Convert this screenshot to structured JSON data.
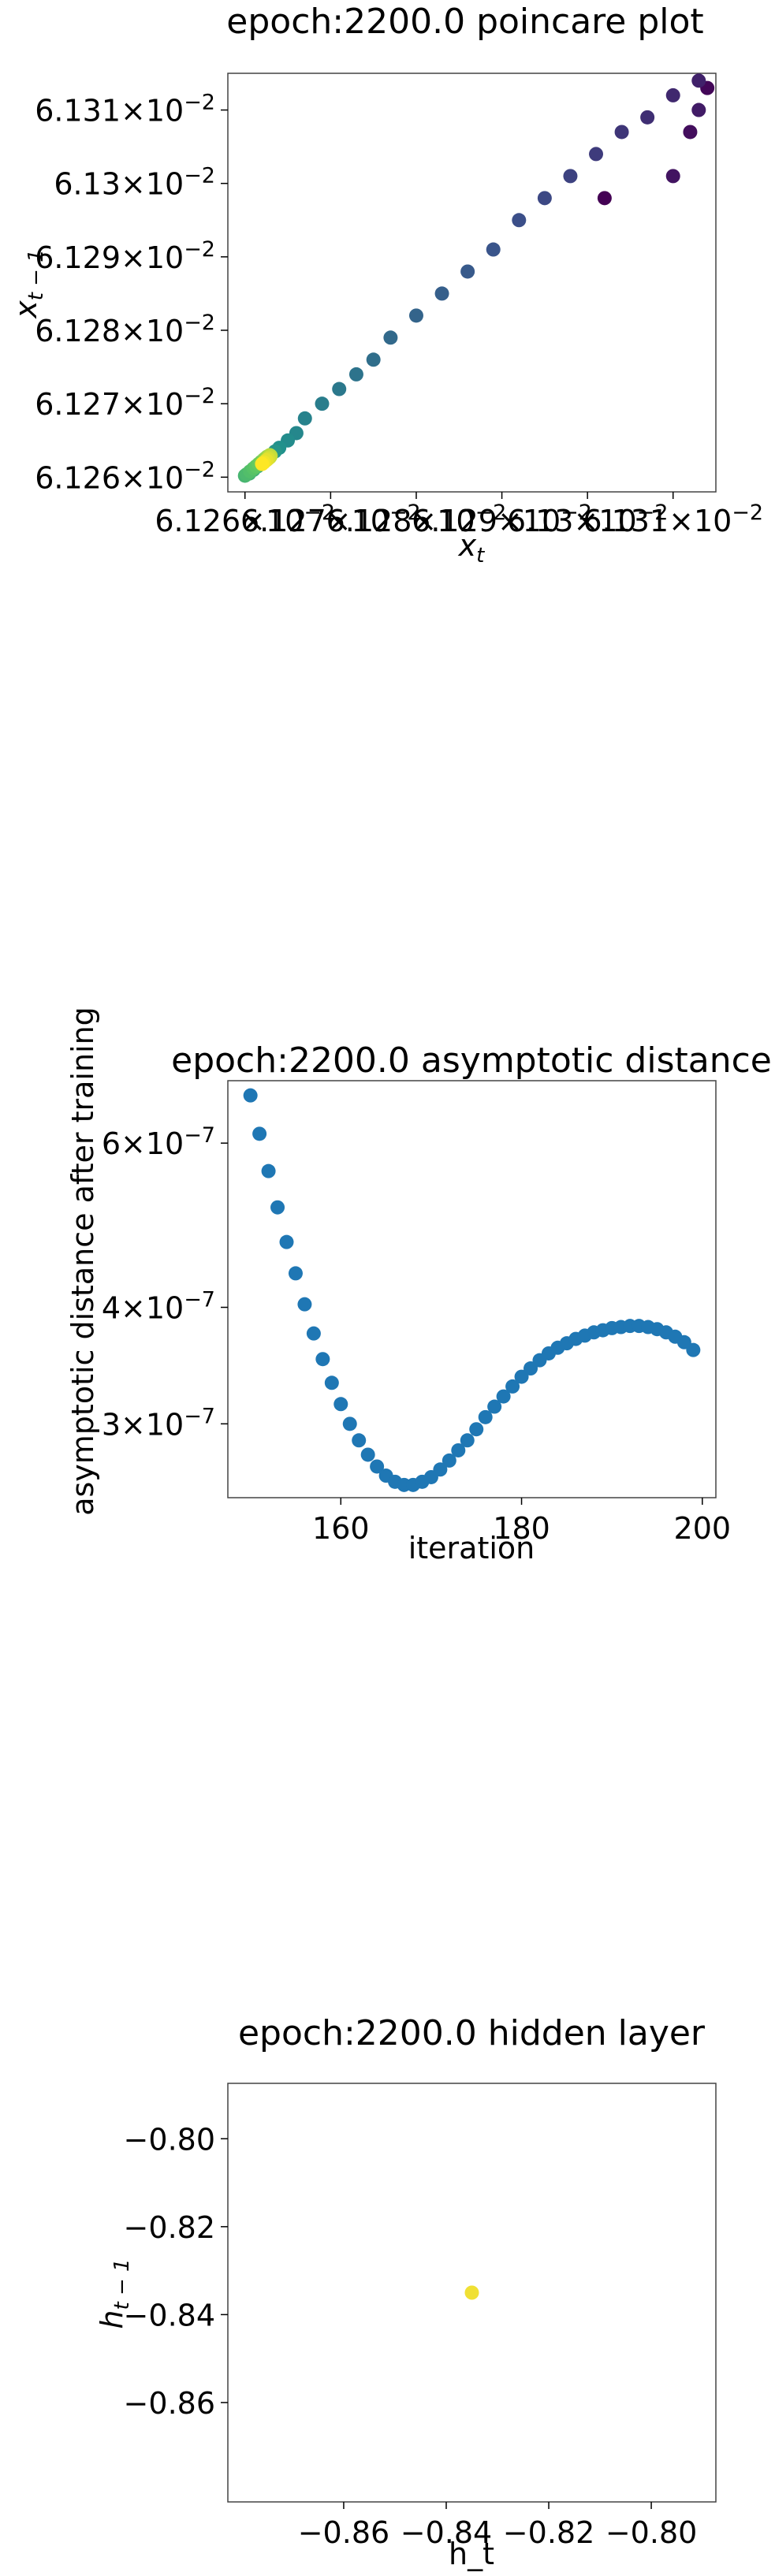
{
  "chart_data": [
    {
      "type": "scatter",
      "title": "epoch:2200.0 poincare plot",
      "xlabel": "x_t",
      "ylabel": "x_{t-1}",
      "x_scale": "log",
      "y_scale": "log",
      "xlim": [
        0.061258,
        0.061315
      ],
      "ylim": [
        0.061258,
        0.061315
      ],
      "x_ticks": [
        {
          "value": 0.06126,
          "mant": "6.126",
          "exp": "-2"
        },
        {
          "value": 0.06127,
          "mant": "6.127",
          "exp": "-2"
        },
        {
          "value": 0.06128,
          "mant": "6.128",
          "exp": "-2"
        },
        {
          "value": 0.06129,
          "mant": "6.129",
          "exp": "-2"
        },
        {
          "value": 0.0613,
          "mant": "6.13",
          "exp": "-2"
        },
        {
          "value": 0.06131,
          "mant": "6.131",
          "exp": "-2"
        }
      ],
      "y_ticks": [
        {
          "value": 0.06126,
          "mant": "6.126",
          "exp": "-2"
        },
        {
          "value": 0.06127,
          "mant": "6.127",
          "exp": "-2"
        },
        {
          "value": 0.06128,
          "mant": "6.128",
          "exp": "-2"
        },
        {
          "value": 0.06129,
          "mant": "6.129",
          "exp": "-2"
        },
        {
          "value": 0.0613,
          "mant": "6.13",
          "exp": "-2"
        },
        {
          "value": 0.06131,
          "mant": "6.131",
          "exp": "-2"
        }
      ],
      "colormap": "viridis (point color = iteration order)",
      "points": [
        {
          "x": 0.061302,
          "y": 0.061298,
          "t": 0.0
        },
        {
          "x": 0.061314,
          "y": 0.061313,
          "t": 0.02
        },
        {
          "x": 0.061312,
          "y": 0.061307,
          "t": 0.04
        },
        {
          "x": 0.06131,
          "y": 0.061301,
          "t": 0.06
        },
        {
          "x": 0.061313,
          "y": 0.06131,
          "t": 0.08
        },
        {
          "x": 0.061313,
          "y": 0.061314,
          "t": 0.1
        },
        {
          "x": 0.06131,
          "y": 0.061312,
          "t": 0.12
        },
        {
          "x": 0.061307,
          "y": 0.061309,
          "t": 0.14
        },
        {
          "x": 0.061304,
          "y": 0.061307,
          "t": 0.16
        },
        {
          "x": 0.061301,
          "y": 0.061304,
          "t": 0.18
        },
        {
          "x": 0.061298,
          "y": 0.061301,
          "t": 0.2
        },
        {
          "x": 0.061295,
          "y": 0.061298,
          "t": 0.22
        },
        {
          "x": 0.061292,
          "y": 0.061295,
          "t": 0.24
        },
        {
          "x": 0.061289,
          "y": 0.061291,
          "t": 0.26
        },
        {
          "x": 0.061286,
          "y": 0.061288,
          "t": 0.28
        },
        {
          "x": 0.061283,
          "y": 0.061285,
          "t": 0.3
        },
        {
          "x": 0.06128,
          "y": 0.061282,
          "t": 0.32
        },
        {
          "x": 0.061277,
          "y": 0.061279,
          "t": 0.34
        },
        {
          "x": 0.061275,
          "y": 0.061276,
          "t": 0.36
        },
        {
          "x": 0.061273,
          "y": 0.061274,
          "t": 0.38
        },
        {
          "x": 0.061271,
          "y": 0.061272,
          "t": 0.4
        },
        {
          "x": 0.061269,
          "y": 0.06127,
          "t": 0.42
        },
        {
          "x": 0.061267,
          "y": 0.061268,
          "t": 0.44
        },
        {
          "x": 0.061266,
          "y": 0.061266,
          "t": 0.46
        },
        {
          "x": 0.061265,
          "y": 0.061265,
          "t": 0.48
        },
        {
          "x": 0.061264,
          "y": 0.061264,
          "t": 0.5
        },
        {
          "x": 0.0612635,
          "y": 0.0612635,
          "t": 0.52
        },
        {
          "x": 0.061263,
          "y": 0.061263,
          "t": 0.54
        },
        {
          "x": 0.0612625,
          "y": 0.0612625,
          "t": 0.56
        },
        {
          "x": 0.061262,
          "y": 0.061262,
          "t": 0.58
        },
        {
          "x": 0.0612615,
          "y": 0.0612615,
          "t": 0.6
        },
        {
          "x": 0.061261,
          "y": 0.061261,
          "t": 0.62
        },
        {
          "x": 0.0612605,
          "y": 0.0612605,
          "t": 0.64
        },
        {
          "x": 0.06126,
          "y": 0.0612602,
          "t": 0.66
        },
        {
          "x": 0.0612602,
          "y": 0.0612604,
          "t": 0.68
        },
        {
          "x": 0.0612606,
          "y": 0.0612608,
          "t": 0.7
        },
        {
          "x": 0.061261,
          "y": 0.0612612,
          "t": 0.72
        },
        {
          "x": 0.0612613,
          "y": 0.0612615,
          "t": 0.74
        },
        {
          "x": 0.0612616,
          "y": 0.0612618,
          "t": 0.76
        },
        {
          "x": 0.0612619,
          "y": 0.0612621,
          "t": 0.78
        },
        {
          "x": 0.0612622,
          "y": 0.0612624,
          "t": 0.8
        },
        {
          "x": 0.0612624,
          "y": 0.0612626,
          "t": 0.82
        },
        {
          "x": 0.0612626,
          "y": 0.0612628,
          "t": 0.84
        },
        {
          "x": 0.0612628,
          "y": 0.0612629,
          "t": 0.86
        },
        {
          "x": 0.0612629,
          "y": 0.061263,
          "t": 0.88
        },
        {
          "x": 0.061263,
          "y": 0.0612629,
          "t": 0.9
        },
        {
          "x": 0.0612629,
          "y": 0.0612627,
          "t": 0.92
        },
        {
          "x": 0.0612627,
          "y": 0.0612625,
          "t": 0.94
        },
        {
          "x": 0.0612625,
          "y": 0.0612623,
          "t": 0.96
        },
        {
          "x": 0.0612622,
          "y": 0.061262,
          "t": 0.98
        },
        {
          "x": 0.061262,
          "y": 0.0612618,
          "t": 1.0
        }
      ]
    },
    {
      "type": "scatter",
      "title": "epoch:2200.0 asymptotic distance",
      "xlabel": "iteration",
      "ylabel": "asymptotic distance after training",
      "y_scale": "log",
      "xlim": [
        147.5,
        201.5
      ],
      "ylim": [
        2.5e-07,
        7e-07
      ],
      "x_ticks": [
        {
          "value": 160,
          "label": "160"
        },
        {
          "value": 180,
          "label": "180"
        },
        {
          "value": 200,
          "label": "200"
        }
      ],
      "y_ticks": [
        {
          "value": 3e-07,
          "mant": "3",
          "exp": "-7"
        },
        {
          "value": 4e-07,
          "mant": "4",
          "exp": "-7"
        },
        {
          "value": 6e-07,
          "mant": "6",
          "exp": "-7"
        }
      ],
      "color": "#1f77b4",
      "x": [
        150,
        151,
        152,
        153,
        154,
        155,
        156,
        157,
        158,
        159,
        160,
        161,
        162,
        163,
        164,
        165,
        166,
        167,
        168,
        169,
        170,
        171,
        172,
        173,
        174,
        175,
        176,
        177,
        178,
        179,
        180,
        181,
        182,
        183,
        184,
        185,
        186,
        187,
        188,
        189,
        190,
        191,
        192,
        193,
        194,
        195,
        196,
        197,
        198,
        199
      ],
      "y": [
        6.75e-07,
        6.14e-07,
        5.6e-07,
        5.12e-07,
        4.7e-07,
        4.35e-07,
        4.03e-07,
        3.75e-07,
        3.52e-07,
        3.32e-07,
        3.15e-07,
        3e-07,
        2.88e-07,
        2.78e-07,
        2.7e-07,
        2.64e-07,
        2.6e-07,
        2.58e-07,
        2.58e-07,
        2.6e-07,
        2.63e-07,
        2.68e-07,
        2.74e-07,
        2.81e-07,
        2.88e-07,
        2.96e-07,
        3.05e-07,
        3.13e-07,
        3.21e-07,
        3.29e-07,
        3.37e-07,
        3.44e-07,
        3.51e-07,
        3.57e-07,
        3.62e-07,
        3.66e-07,
        3.7e-07,
        3.73e-07,
        3.76e-07,
        3.78e-07,
        3.8e-07,
        3.81e-07,
        3.82e-07,
        3.82e-07,
        3.81e-07,
        3.79e-07,
        3.76e-07,
        3.72e-07,
        3.67e-07,
        3.6e-07
      ]
    },
    {
      "type": "scatter",
      "title": "epoch:2200.0 hidden layer",
      "xlabel": "h_t",
      "ylabel": "h_{t-1}",
      "xlim": [
        -0.8826,
        -0.7874
      ],
      "ylim": [
        -0.8826,
        -0.7874
      ],
      "x_ticks": [
        {
          "value": -0.86,
          "label": "−0.86"
        },
        {
          "value": -0.84,
          "label": "−0.84"
        },
        {
          "value": -0.82,
          "label": "−0.82"
        },
        {
          "value": -0.8,
          "label": "−0.80"
        }
      ],
      "y_ticks": [
        {
          "value": -0.86,
          "label": "−0.86"
        },
        {
          "value": -0.84,
          "label": "−0.84"
        },
        {
          "value": -0.82,
          "label": "−0.82"
        },
        {
          "value": -0.8,
          "label": "−0.80"
        }
      ],
      "color": "#f0e034",
      "points": [
        {
          "x": -0.835,
          "y": -0.835
        }
      ]
    }
  ]
}
